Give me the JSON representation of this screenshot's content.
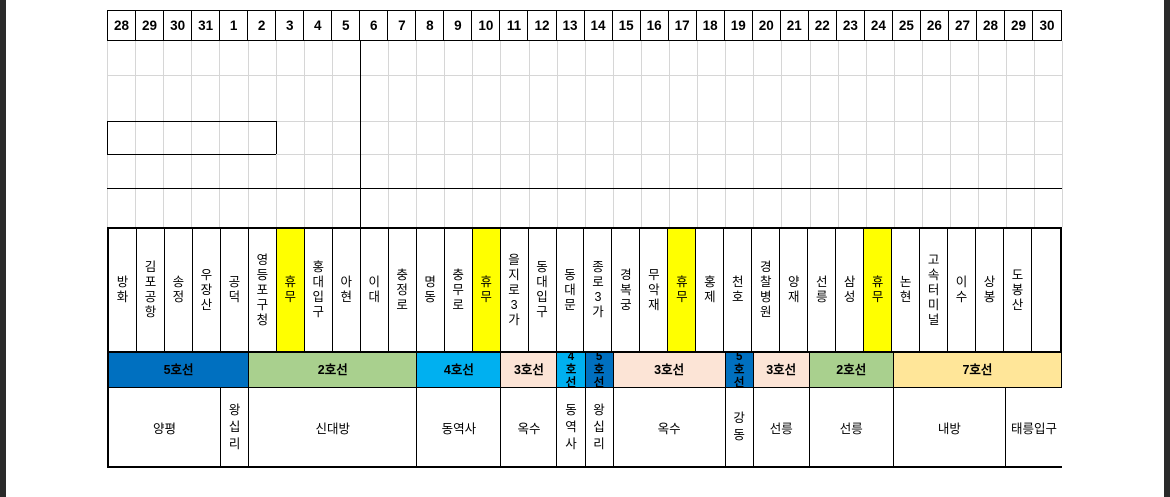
{
  "dates": [
    "28",
    "29",
    "30",
    "31",
    "1",
    "2",
    "3",
    "4",
    "5",
    "6",
    "7",
    "8",
    "9",
    "10",
    "11",
    "12",
    "13",
    "14",
    "15",
    "16",
    "17",
    "18",
    "19",
    "20",
    "21",
    "22",
    "23",
    "24",
    "25",
    "26",
    "27",
    "28",
    "29",
    "30"
  ],
  "stations": [
    {
      "name": "방화",
      "yellow": false
    },
    {
      "name": "김포공항",
      "yellow": false
    },
    {
      "name": "송정",
      "yellow": false
    },
    {
      "name": "우장산",
      "yellow": false
    },
    {
      "name": "공덕",
      "yellow": false
    },
    {
      "name": "영등포구청",
      "yellow": false
    },
    {
      "name": "휴무",
      "yellow": true
    },
    {
      "name": "홍대입구",
      "yellow": false
    },
    {
      "name": "아현",
      "yellow": false
    },
    {
      "name": "이대",
      "yellow": false
    },
    {
      "name": "충정로",
      "yellow": false
    },
    {
      "name": "명동",
      "yellow": false
    },
    {
      "name": "충무로",
      "yellow": false
    },
    {
      "name": "휴무",
      "yellow": true
    },
    {
      "name": "을지로3가",
      "yellow": false
    },
    {
      "name": "동대입구",
      "yellow": false
    },
    {
      "name": "동대문",
      "yellow": false
    },
    {
      "name": "종로3가",
      "yellow": false
    },
    {
      "name": "경복궁",
      "yellow": false
    },
    {
      "name": "무악재",
      "yellow": false
    },
    {
      "name": "휴무",
      "yellow": true
    },
    {
      "name": "홍제",
      "yellow": false
    },
    {
      "name": "천호",
      "yellow": false
    },
    {
      "name": "경찰병원",
      "yellow": false
    },
    {
      "name": "양재",
      "yellow": false
    },
    {
      "name": "선릉",
      "yellow": false
    },
    {
      "name": "삼성",
      "yellow": false
    },
    {
      "name": "휴무",
      "yellow": true
    },
    {
      "name": "논현",
      "yellow": false
    },
    {
      "name": "고속터미널",
      "yellow": false
    },
    {
      "name": "이수",
      "yellow": false
    },
    {
      "name": "상봉",
      "yellow": false
    },
    {
      "name": "도봉산",
      "yellow": false
    },
    {
      "name": "",
      "yellow": false
    }
  ],
  "lines": [
    {
      "label": "5호선",
      "span": 5,
      "color": "#0070c0"
    },
    {
      "label": "2호선",
      "span": 6,
      "color": "#a9d08e"
    },
    {
      "label": "4호선",
      "span": 3,
      "color": "#00b0f0"
    },
    {
      "label": "3호선",
      "span": 2,
      "color": "#fce4d6"
    },
    {
      "label": "4호선",
      "span": 1,
      "color": "#00b0f0"
    },
    {
      "label": "5호선",
      "span": 1,
      "color": "#0070c0"
    },
    {
      "label": "3호선",
      "span": 4,
      "color": "#fce4d6"
    },
    {
      "label": "5호선",
      "span": 1,
      "color": "#0070c0"
    },
    {
      "label": "3호선",
      "span": 2,
      "color": "#fce4d6"
    },
    {
      "label": "2호선",
      "span": 3,
      "color": "#a9d08e"
    },
    {
      "label": "7호선",
      "span": 6,
      "color": "#ffe699"
    }
  ],
  "depots": [
    {
      "label": "양평",
      "span": 4,
      "vertical": false
    },
    {
      "label": "왕십리",
      "span": 1,
      "vertical": true
    },
    {
      "label": "신대방",
      "span": 6,
      "vertical": false
    },
    {
      "label": "동역사",
      "span": 3,
      "vertical": false
    },
    {
      "label": "옥수",
      "span": 2,
      "vertical": false
    },
    {
      "label": "동역사",
      "span": 1,
      "vertical": true
    },
    {
      "label": "왕십리",
      "span": 1,
      "vertical": true
    },
    {
      "label": "옥수",
      "span": 4,
      "vertical": false
    },
    {
      "label": "강동",
      "span": 1,
      "vertical": true
    },
    {
      "label": "선릉",
      "span": 2,
      "vertical": false
    },
    {
      "label": "선릉",
      "span": 3,
      "vertical": false
    },
    {
      "label": "내방",
      "span": 4,
      "vertical": false
    },
    {
      "label": "태릉입구",
      "span": 2,
      "vertical": false
    }
  ]
}
